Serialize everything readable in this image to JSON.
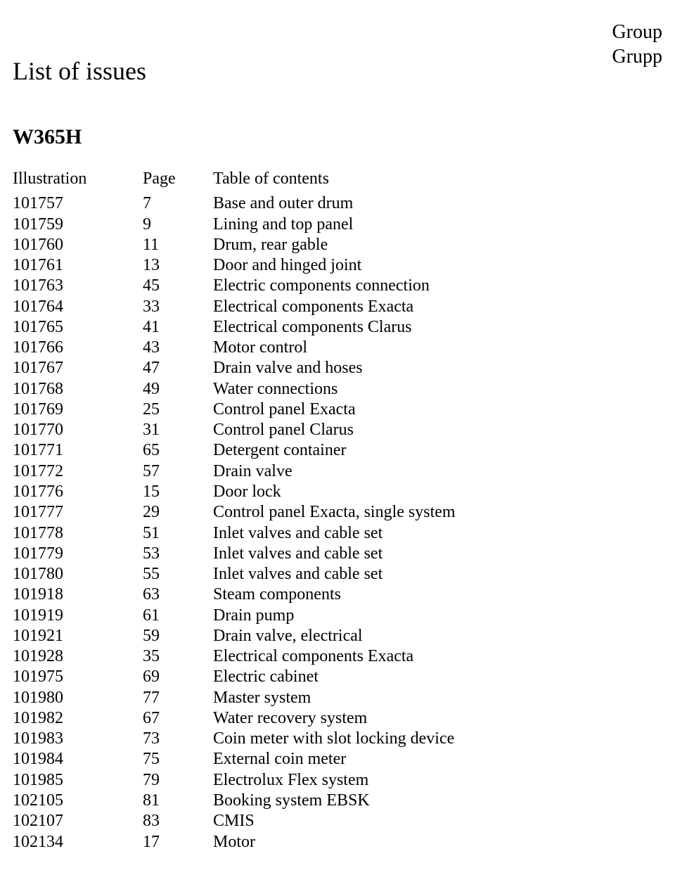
{
  "corner": {
    "line1": "Group",
    "line2": "Grupp"
  },
  "title": "List of issues",
  "model": "W365H",
  "headers": {
    "illustration": "Illustration",
    "page": "Page",
    "toc": "Table of contents"
  },
  "rows": [
    {
      "illustration": "101757",
      "page": "7",
      "toc": "Base and outer drum"
    },
    {
      "illustration": "101759",
      "page": "9",
      "toc": "Lining and top panel"
    },
    {
      "illustration": "101760",
      "page": "11",
      "toc": "Drum, rear gable"
    },
    {
      "illustration": "101761",
      "page": "13",
      "toc": "Door and hinged joint"
    },
    {
      "illustration": "101763",
      "page": "45",
      "toc": "Electric components connection"
    },
    {
      "illustration": "101764",
      "page": "33",
      "toc": "Electrical components Exacta"
    },
    {
      "illustration": "101765",
      "page": "41",
      "toc": "Electrical components Clarus"
    },
    {
      "illustration": "101766",
      "page": "43",
      "toc": "Motor control"
    },
    {
      "illustration": "101767",
      "page": "47",
      "toc": "Drain valve and hoses"
    },
    {
      "illustration": "101768",
      "page": "49",
      "toc": "Water connections"
    },
    {
      "illustration": "101769",
      "page": "25",
      "toc": "Control panel Exacta"
    },
    {
      "illustration": "101770",
      "page": "31",
      "toc": "Control panel Clarus"
    },
    {
      "illustration": "101771",
      "page": "65",
      "toc": "Detergent container"
    },
    {
      "illustration": "101772",
      "page": "57",
      "toc": "Drain valve"
    },
    {
      "illustration": "101776",
      "page": "15",
      "toc": "Door lock"
    },
    {
      "illustration": "101777",
      "page": "29",
      "toc": "Control panel Exacta, single system"
    },
    {
      "illustration": "101778",
      "page": "51",
      "toc": "Inlet valves and cable set"
    },
    {
      "illustration": "101779",
      "page": "53",
      "toc": "Inlet valves and cable set"
    },
    {
      "illustration": "101780",
      "page": "55",
      "toc": "Inlet valves and cable set"
    },
    {
      "illustration": "101918",
      "page": "63",
      "toc": "Steam components"
    },
    {
      "illustration": "101919",
      "page": "61",
      "toc": "Drain pump"
    },
    {
      "illustration": "101921",
      "page": "59",
      "toc": "Drain valve, electrical"
    },
    {
      "illustration": "101928",
      "page": "35",
      "toc": "Electrical components Exacta"
    },
    {
      "illustration": "101975",
      "page": "69",
      "toc": "Electric cabinet"
    },
    {
      "illustration": "101980",
      "page": "77",
      "toc": "Master system"
    },
    {
      "illustration": "101982",
      "page": "67",
      "toc": "Water recovery system"
    },
    {
      "illustration": "101983",
      "page": "73",
      "toc": "Coin meter with slot locking device"
    },
    {
      "illustration": "101984",
      "page": "75",
      "toc": "External coin meter"
    },
    {
      "illustration": "101985",
      "page": "79",
      "toc": "Electrolux Flex system"
    },
    {
      "illustration": "102105",
      "page": "81",
      "toc": "Booking system EBSK"
    },
    {
      "illustration": "102107",
      "page": "83",
      "toc": "CMIS"
    },
    {
      "illustration": "102134",
      "page": "17",
      "toc": "Motor"
    }
  ]
}
